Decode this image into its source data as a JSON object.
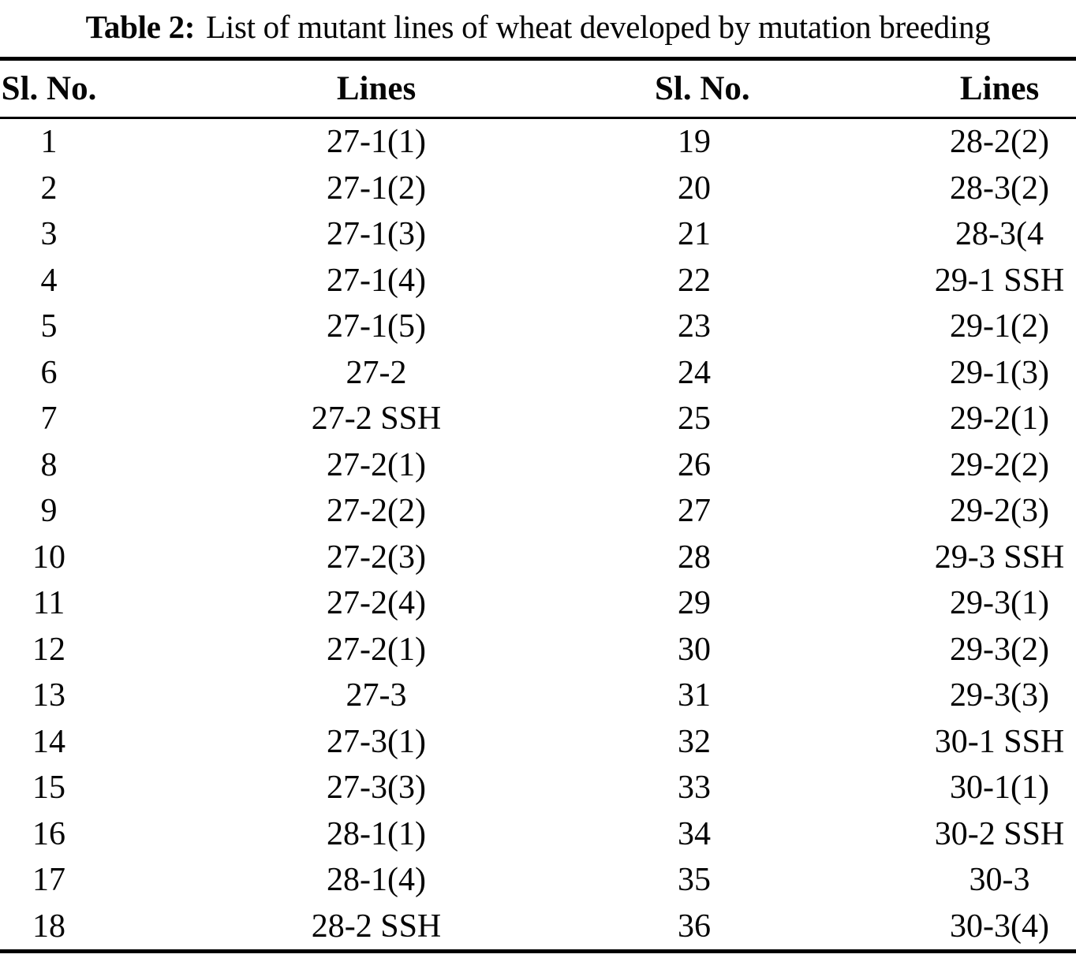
{
  "caption": {
    "label": "Table 2:",
    "text": "List of mutant lines of wheat developed by mutation breeding"
  },
  "table": {
    "headers": [
      "Sl. No.",
      "Lines",
      "Sl. No.",
      "Lines"
    ],
    "rows": [
      [
        "1",
        "27-1(1)",
        "19",
        "28-2(2)"
      ],
      [
        "2",
        "27-1(2)",
        "20",
        "28-3(2)"
      ],
      [
        "3",
        "27-1(3)",
        "21",
        "28-3(4"
      ],
      [
        "4",
        "27-1(4)",
        "22",
        "29-1 SSH"
      ],
      [
        "5",
        "27-1(5)",
        "23",
        "29-1(2)"
      ],
      [
        "6",
        "27-2",
        "24",
        "29-1(3)"
      ],
      [
        "7",
        "27-2 SSH",
        "25",
        "29-2(1)"
      ],
      [
        "8",
        "27-2(1)",
        "26",
        "29-2(2)"
      ],
      [
        "9",
        "27-2(2)",
        "27",
        "29-2(3)"
      ],
      [
        "10",
        "27-2(3)",
        "28",
        "29-3 SSH"
      ],
      [
        "11",
        "27-2(4)",
        "29",
        "29-3(1)"
      ],
      [
        "12",
        "27-2(1)",
        "30",
        "29-3(2)"
      ],
      [
        "13",
        "27-3",
        "31",
        "29-3(3)"
      ],
      [
        "14",
        "27-3(1)",
        "32",
        "30-1 SSH"
      ],
      [
        "15",
        "27-3(3)",
        "33",
        "30-1(1)"
      ],
      [
        "16",
        "28-1(1)",
        "34",
        "30-2 SSH"
      ],
      [
        "17",
        "28-1(4)",
        "35",
        "30-3"
      ],
      [
        "18",
        "28-2 SSH",
        "36",
        "30-3(4)"
      ]
    ]
  },
  "colors": {
    "text": "#050505",
    "rule": "#000000",
    "background": "#ffffff"
  }
}
